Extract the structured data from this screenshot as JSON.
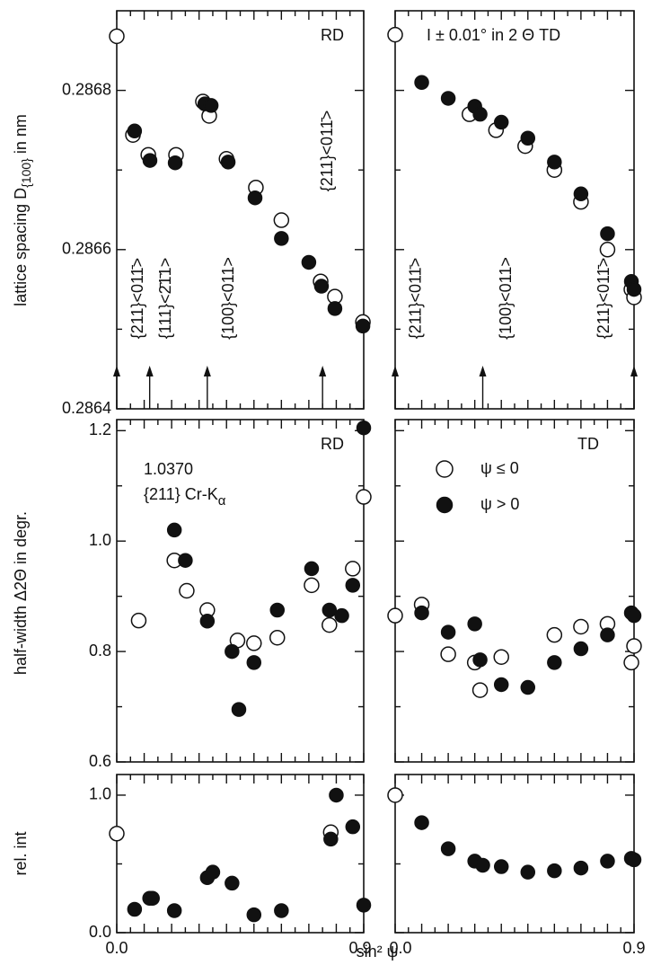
{
  "chart_data": {
    "type": "scatter",
    "xlim": [
      0,
      0.9
    ],
    "xticks": [
      0,
      0.05,
      0.1,
      0.15,
      0.2,
      0.25,
      0.3,
      0.35,
      0.4,
      0.45,
      0.5,
      0.55,
      0.6,
      0.65,
      0.7,
      0.75,
      0.8,
      0.85,
      0.9
    ],
    "xtick_labels": [
      {
        "value": 0,
        "label": "0.0"
      },
      {
        "value": 0.9,
        "label": "0.9"
      }
    ],
    "xlabel": "sin² ψ",
    "rows": [
      {
        "ylim": [
          0.2864,
          0.2869
        ],
        "yticks": [
          0.2864,
          0.2866,
          0.2868
        ],
        "yminor": [
          0.2865,
          0.2867
        ],
        "ylabel": "lattice spacing D",
        "ylabel_sub": "{100}",
        "ylabel_end": " in nm",
        "panels": [
          {
            "texts": [
              "RD"
            ],
            "arrows": [
              0,
              0.12,
              0.33,
              0.75
            ],
            "annotations": [
              {
                "text": "{211}<011̄>",
                "x": 0.08
              },
              {
                "text": "{111}<2̄1̄1>",
                "x": 0.18
              },
              {
                "text": "{100}<011>",
                "x": 0.41
              },
              {
                "text": "{211}<011̄>",
                "x": 0.77
              }
            ],
            "series": [
              {
                "marker": "open",
                "x": [
                  0,
                  0.059,
                  0.115,
                  0.216,
                  0.314,
                  0.337,
                  0.4,
                  0.507,
                  0.6,
                  0.743,
                  0.795,
                  0.897
                ],
                "values": [
                  0.286868,
                  0.286744,
                  0.286719,
                  0.286719,
                  0.286786,
                  0.286768,
                  0.286714,
                  0.286678,
                  0.286637,
                  0.28656,
                  0.286541,
                  0.286509
                ]
              },
              {
                "marker": "filled",
                "x": [
                  0.065,
                  0.121,
                  0.213,
                  0.321,
                  0.344,
                  0.406,
                  0.504,
                  0.6,
                  0.7,
                  0.746,
                  0.795,
                  0.897
                ],
                "values": [
                  0.286749,
                  0.286712,
                  0.286709,
                  0.286783,
                  0.286781,
                  0.28671,
                  0.286665,
                  0.286614,
                  0.286584,
                  0.286554,
                  0.286526,
                  0.286504
                ]
              }
            ]
          },
          {
            "texts": [
              "I ± 0.01° in 2 Θ  TD"
            ],
            "arrows": [
              0,
              0.33,
              0.9
            ],
            "annotations": [
              {
                "text": "{211}<011̄>",
                "x": 0.08
              },
              {
                "text": "{100}<011>",
                "x": 0.42
              },
              {
                "text": "{211}<011̄>",
                "x": 0.79
              }
            ],
            "series": [
              {
                "marker": "open",
                "x": [
                  0,
                  0.28,
                  0.38,
                  0.49,
                  0.6,
                  0.7,
                  0.8,
                  0.89,
                  0.9
                ],
                "values": [
                  0.28687,
                  0.28677,
                  0.28675,
                  0.28673,
                  0.2867,
                  0.28666,
                  0.2866,
                  0.28655,
                  0.28654
                ]
              },
              {
                "marker": "filled",
                "x": [
                  0.1,
                  0.2,
                  0.3,
                  0.32,
                  0.4,
                  0.5,
                  0.6,
                  0.7,
                  0.8,
                  0.89,
                  0.9
                ],
                "values": [
                  0.28681,
                  0.28679,
                  0.28678,
                  0.28677,
                  0.28676,
                  0.28674,
                  0.28671,
                  0.28667,
                  0.28662,
                  0.28656,
                  0.28655
                ]
              }
            ]
          }
        ]
      },
      {
        "ylim": [
          0.6,
          1.22
        ],
        "yticks": [
          0.6,
          0.8,
          {
            "value": 1.0,
            "label": "1.0"
          },
          1.2
        ],
        "yminor": [
          0.7,
          0.9,
          1.1
        ],
        "ylabel": "half-width  Δ2Θ  in degr.",
        "panels": [
          {
            "texts": [
              "RD",
              "1.0370"
            ],
            "note": "{211} Cr-K",
            "note_sub": "α",
            "series": [
              {
                "marker": "open",
                "x": [
                  0.08,
                  0.21,
                  0.255,
                  0.33,
                  0.44,
                  0.5,
                  0.585,
                  0.71,
                  0.775,
                  0.86,
                  0.9
                ],
                "values": [
                  0.856,
                  0.965,
                  0.91,
                  0.875,
                  0.82,
                  0.815,
                  0.825,
                  0.92,
                  0.848,
                  0.95,
                  1.08
                ]
              },
              {
                "marker": "filled",
                "x": [
                  0.21,
                  0.25,
                  0.33,
                  0.42,
                  0.445,
                  0.5,
                  0.585,
                  0.71,
                  0.775,
                  0.82,
                  0.86,
                  0.9
                ],
                "values": [
                  1.02,
                  0.965,
                  0.855,
                  0.8,
                  0.695,
                  0.78,
                  0.875,
                  0.95,
                  0.875,
                  0.865,
                  0.92,
                  1.205
                ]
              }
            ]
          },
          {
            "texts": [
              "TD"
            ],
            "legend": true,
            "series": [
              {
                "name": "ψ ≤ 0",
                "marker": "open",
                "x": [
                  0,
                  0.1,
                  0.2,
                  0.3,
                  0.32,
                  0.4,
                  0.6,
                  0.7,
                  0.8,
                  0.89,
                  0.9
                ],
                "values": [
                  0.865,
                  0.885,
                  0.795,
                  0.78,
                  0.73,
                  0.79,
                  0.83,
                  0.845,
                  0.85,
                  0.78,
                  0.81
                ]
              },
              {
                "name": "ψ > 0",
                "marker": "filled",
                "x": [
                  0.1,
                  0.2,
                  0.3,
                  0.32,
                  0.4,
                  0.5,
                  0.6,
                  0.7,
                  0.8,
                  0.89,
                  0.9
                ],
                "values": [
                  0.87,
                  0.835,
                  0.85,
                  0.785,
                  0.74,
                  0.735,
                  0.78,
                  0.805,
                  0.83,
                  0.87,
                  0.865
                ]
              }
            ]
          }
        ]
      },
      {
        "ylim": [
          0,
          1.15
        ],
        "yticks": [
          {
            "value": 0,
            "label": "0.0"
          },
          {
            "value": 1.0,
            "label": "1.0"
          }
        ],
        "yminor": [
          0.5
        ],
        "ylabel": "rel. int",
        "panels": [
          {
            "series": [
              {
                "marker": "open",
                "x": [
                  0,
                  0.78
                ],
                "values": [
                  0.72,
                  0.73
                ]
              },
              {
                "marker": "filled",
                "x": [
                  0.065,
                  0.12,
                  0.13,
                  0.21,
                  0.33,
                  0.35,
                  0.42,
                  0.5,
                  0.6,
                  0.78,
                  0.8,
                  0.86,
                  0.9
                ],
                "values": [
                  0.17,
                  0.25,
                  0.25,
                  0.16,
                  0.4,
                  0.44,
                  0.36,
                  0.13,
                  0.16,
                  0.68,
                  1.0,
                  0.77,
                  0.2
                ]
              }
            ]
          },
          {
            "series": [
              {
                "marker": "open",
                "x": [
                  0
                ],
                "values": [
                  1.0
                ]
              },
              {
                "marker": "filled",
                "x": [
                  0.1,
                  0.2,
                  0.3,
                  0.33,
                  0.4,
                  0.5,
                  0.6,
                  0.7,
                  0.8,
                  0.89,
                  0.9
                ],
                "values": [
                  0.8,
                  0.61,
                  0.52,
                  0.49,
                  0.48,
                  0.44,
                  0.45,
                  0.47,
                  0.52,
                  0.54,
                  0.53
                ]
              }
            ]
          }
        ]
      }
    ]
  }
}
